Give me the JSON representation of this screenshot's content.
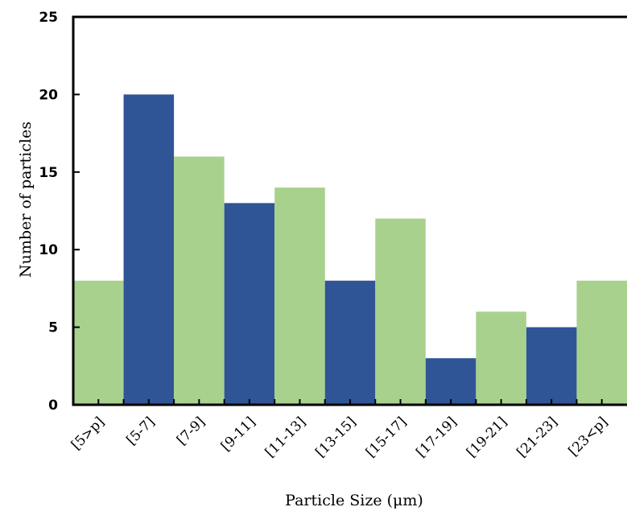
{
  "chart_data": {
    "type": "bar",
    "categories": [
      "[5>p]",
      "[5-7]",
      "[7-9]",
      "[9-11]",
      "[11-13]",
      "[13-15]",
      "[15-17]",
      "[17-19]",
      "[19-21]",
      "[21-23]",
      "[23<p]"
    ],
    "values": [
      8,
      20,
      16,
      13,
      14,
      8,
      12,
      3,
      6,
      5,
      8
    ],
    "bar_colors": [
      "#a9d18e",
      "#2f5597",
      "#a9d18e",
      "#2f5597",
      "#a9d18e",
      "#2f5597",
      "#a9d18e",
      "#2f5597",
      "#a9d18e",
      "#2f5597",
      "#a9d18e"
    ],
    "xlabel": "Particle Size (μm)",
    "ylabel": "Number of particles",
    "ylim": [
      0,
      25
    ],
    "yticks": [
      "0",
      "5",
      "10",
      "15",
      "20",
      "25"
    ],
    "grid": false,
    "legend": "none"
  }
}
